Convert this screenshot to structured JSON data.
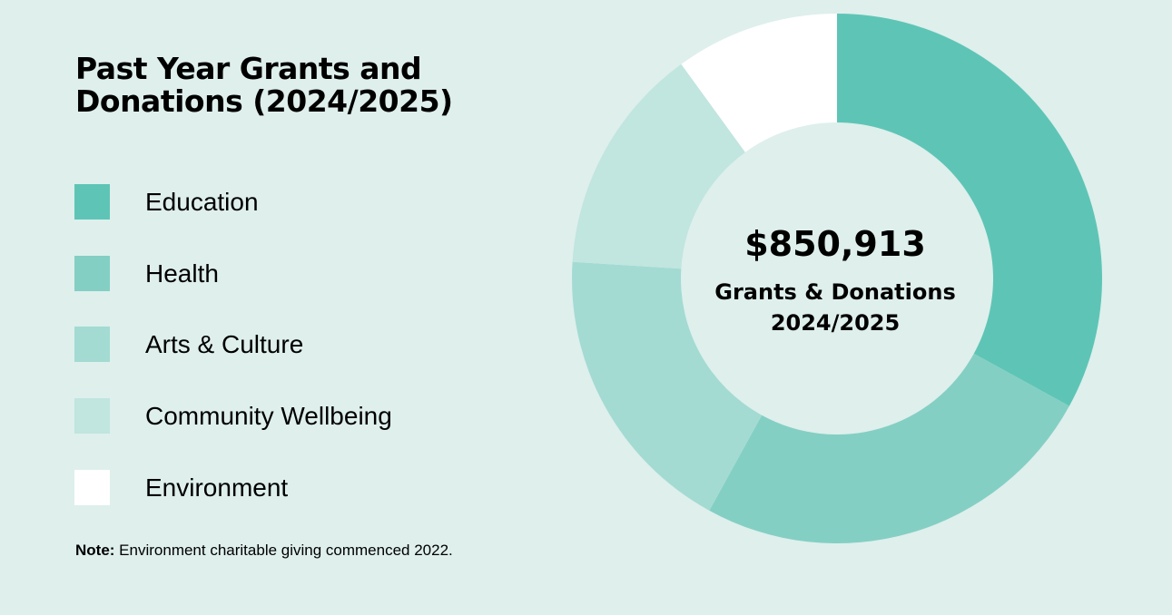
{
  "title_lines": [
    "Past Year Grants and",
    "Donations (2024/2025)"
  ],
  "colors": {
    "background": "#deefec",
    "education": "#5ec5b6",
    "health": "#84cfc3",
    "arts_culture": "#a3dbd3",
    "community_wellbeing": "#c1e5df",
    "environment": "#ffffff"
  },
  "legend": [
    {
      "label": "Education",
      "color": "#5ec5b6"
    },
    {
      "label": "Health",
      "color": "#84cfc3"
    },
    {
      "label": "Arts & Culture",
      "color": "#a3dbd3"
    },
    {
      "label": "Community Wellbeing",
      "color": "#c1e5df"
    },
    {
      "label": "Environment",
      "color": "#ffffff"
    }
  ],
  "note": {
    "prefix": "Note:",
    "text": " Environment charitable giving commenced 2022."
  },
  "center": {
    "total": "$850,913",
    "label_lines": [
      "Grants & Donations",
      "2024/2025"
    ]
  },
  "chart_data": {
    "type": "pie",
    "title": "Past Year Grants and Donations (2024/2025)",
    "categories": [
      "Education",
      "Health",
      "Arts & Culture",
      "Community Wellbeing",
      "Environment"
    ],
    "values": [
      33,
      25,
      18,
      14,
      10
    ],
    "unit": "%",
    "colors": [
      "#5ec5b6",
      "#84cfc3",
      "#a3dbd3",
      "#c1e5df",
      "#ffffff"
    ],
    "total_label": "$850,913",
    "legend_position": "left",
    "donut": true
  }
}
